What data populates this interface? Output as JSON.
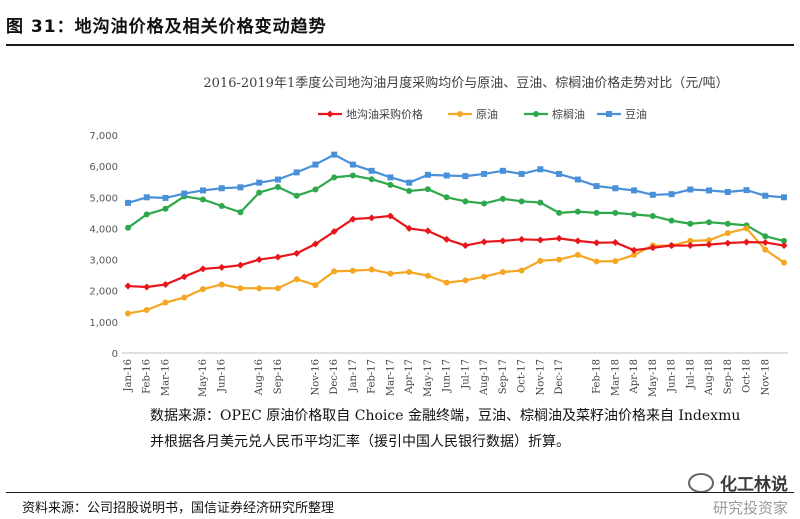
{
  "figure": {
    "title": "图 31：地沟油价格及相关价格变动趋势",
    "note_line1": "数据来源：OPEC 原油价格取自 Choice 金融终端，豆油、棕榈油及菜籽油价格来自 Indexmu",
    "note_line2": "并根据各月美元兑人民币平均汇率（援引中国人民银行数据）折算。",
    "source": "资料来源：公司招股说明书，国信证券经济研究所整理",
    "watermark_name": "化工林说",
    "watermark_sub": "研究投资家"
  },
  "chart_data": {
    "type": "line",
    "title": "2016-2019年1季度公司地沟油月度采购均价与原油、豆油、棕榈油价格走势对比（元/吨）",
    "ylim": [
      0,
      7000
    ],
    "yticks": [
      "0",
      "1,000",
      "2,000",
      "3,000",
      "4,000",
      "5,000",
      "6,000",
      "7,000"
    ],
    "legend_position": "top-center",
    "grid": false,
    "x": [
      "Jan-16",
      "Feb-16",
      "Mar-16",
      "Apr-16",
      "May-16",
      "Jun-16",
      "Jul-16",
      "Aug-16",
      "Sep-16",
      "Oct-16",
      "Nov-16",
      "Dec-16",
      "Jan-17",
      "Feb-17",
      "Mar-17",
      "Apr-17",
      "May-17",
      "Jun-17",
      "Jul-17",
      "Aug-17",
      "Sep-17",
      "Oct-17",
      "Nov-17",
      "Dec-17",
      "Jan-18",
      "Feb-18",
      "Mar-18",
      "Apr-18",
      "May-18",
      "Jun-18",
      "Jul-18",
      "Aug-18",
      "Sep-18",
      "Oct-18",
      "Nov-18",
      "Dec-18"
    ],
    "tick_labels": [
      "Jan-16",
      "Feb-16",
      "Mar-16",
      "May-16",
      "Jun-16",
      "Aug-16",
      "Sep-16",
      "Nov-16",
      "Dec-16",
      "Jan-17",
      "Feb-17",
      "Mar-17",
      "Apr-17",
      "May-17",
      "Jun-17",
      "Jul-17",
      "Aug-17",
      "Sep-17",
      "Oct-17",
      "Nov-17",
      "Dec-17",
      "Feb-18",
      "Mar-18",
      "Apr-18",
      "May-18",
      "Jun-18",
      "Jul-18",
      "Aug-18",
      "Sep-18",
      "Oct-18",
      "Nov-18"
    ],
    "series": [
      {
        "name": "地沟油采购价格",
        "color": "#e8151b",
        "marker": "diamond",
        "values": [
          2150,
          2120,
          2200,
          2450,
          2700,
          2750,
          2820,
          3000,
          3080,
          3200,
          3500,
          3900,
          4300,
          4340,
          4400,
          4000,
          3920,
          3650,
          3450,
          3570,
          3600,
          3650,
          3630,
          3680,
          3600,
          3540,
          3550,
          3300,
          3380,
          3450,
          3450,
          3480,
          3530,
          3560,
          3550,
          3450
        ]
      },
      {
        "name": "原油",
        "color": "#f5a623",
        "marker": "circle",
        "values": [
          1270,
          1380,
          1620,
          1780,
          2050,
          2200,
          2080,
          2080,
          2080,
          2370,
          2180,
          2620,
          2640,
          2680,
          2550,
          2600,
          2480,
          2260,
          2330,
          2450,
          2600,
          2650,
          2960,
          3000,
          3150,
          2940,
          2950,
          3150,
          3450,
          3450,
          3600,
          3620,
          3850,
          4000,
          3320,
          2900
        ]
      },
      {
        "name": "棕榈油",
        "color": "#2da84a",
        "marker": "circle",
        "values": [
          4020,
          4450,
          4630,
          5030,
          4930,
          4720,
          4520,
          5150,
          5330,
          5050,
          5250,
          5640,
          5700,
          5580,
          5400,
          5200,
          5260,
          5000,
          4870,
          4800,
          4950,
          4870,
          4830,
          4500,
          4540,
          4500,
          4500,
          4450,
          4400,
          4250,
          4150,
          4200,
          4150,
          4100,
          3750,
          3600
        ]
      },
      {
        "name": "豆油",
        "color": "#4a90d9",
        "marker": "square",
        "values": [
          4820,
          5000,
          4980,
          5120,
          5220,
          5290,
          5320,
          5470,
          5570,
          5800,
          6050,
          6370,
          6050,
          5850,
          5640,
          5470,
          5720,
          5700,
          5680,
          5750,
          5850,
          5750,
          5900,
          5750,
          5570,
          5360,
          5290,
          5220,
          5080,
          5100,
          5250,
          5220,
          5170,
          5230,
          5050,
          5000
        ]
      }
    ]
  }
}
